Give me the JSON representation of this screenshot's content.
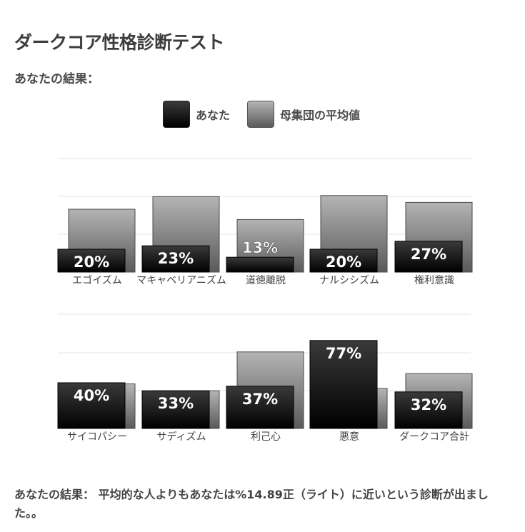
{
  "page": {
    "title": "ダークコア性格診断テスト",
    "subtitle": "あなたの結果："
  },
  "legend": {
    "you_label": "あなた",
    "avg_label": "母集団の平均値"
  },
  "colors": {
    "you_top": "#3a3a3a",
    "you_bottom": "#000000",
    "avg_top": "#b4b4b4",
    "avg_bottom": "#5a5a5a",
    "grid": "#e6e6e6"
  },
  "chart_data": [
    {
      "type": "bar",
      "categories": [
        "エゴイズム",
        "マキャベリアニズム",
        "道徳離脱",
        "ナルシシズム",
        "権利意識"
      ],
      "series": [
        {
          "name": "あなた",
          "values": [
            20,
            23,
            13,
            20,
            27
          ]
        },
        {
          "name": "母集団の平均値",
          "values": [
            55,
            66,
            46,
            67,
            61
          ]
        }
      ],
      "value_labels": [
        "20%",
        "23%",
        "13%",
        "20%",
        "27%"
      ],
      "ylim": [
        0,
        100
      ],
      "grid": true
    },
    {
      "type": "bar",
      "categories": [
        "サイコパシー",
        "サディズム",
        "利己心",
        "悪意",
        "ダークコア合計"
      ],
      "series": [
        {
          "name": "あなた",
          "values": [
            40,
            33,
            37,
            77,
            32
          ]
        },
        {
          "name": "母集団の平均値",
          "values": [
            39,
            33,
            67,
            35,
            48
          ]
        }
      ],
      "value_labels": [
        "40%",
        "33%",
        "37%",
        "77%",
        "32%"
      ],
      "ylim": [
        0,
        100
      ],
      "grid": true
    }
  ],
  "result_text": "あなたの結果： 平均的な人よりもあなたは%14.89正（ライト）に近いという診断が出ました。。"
}
